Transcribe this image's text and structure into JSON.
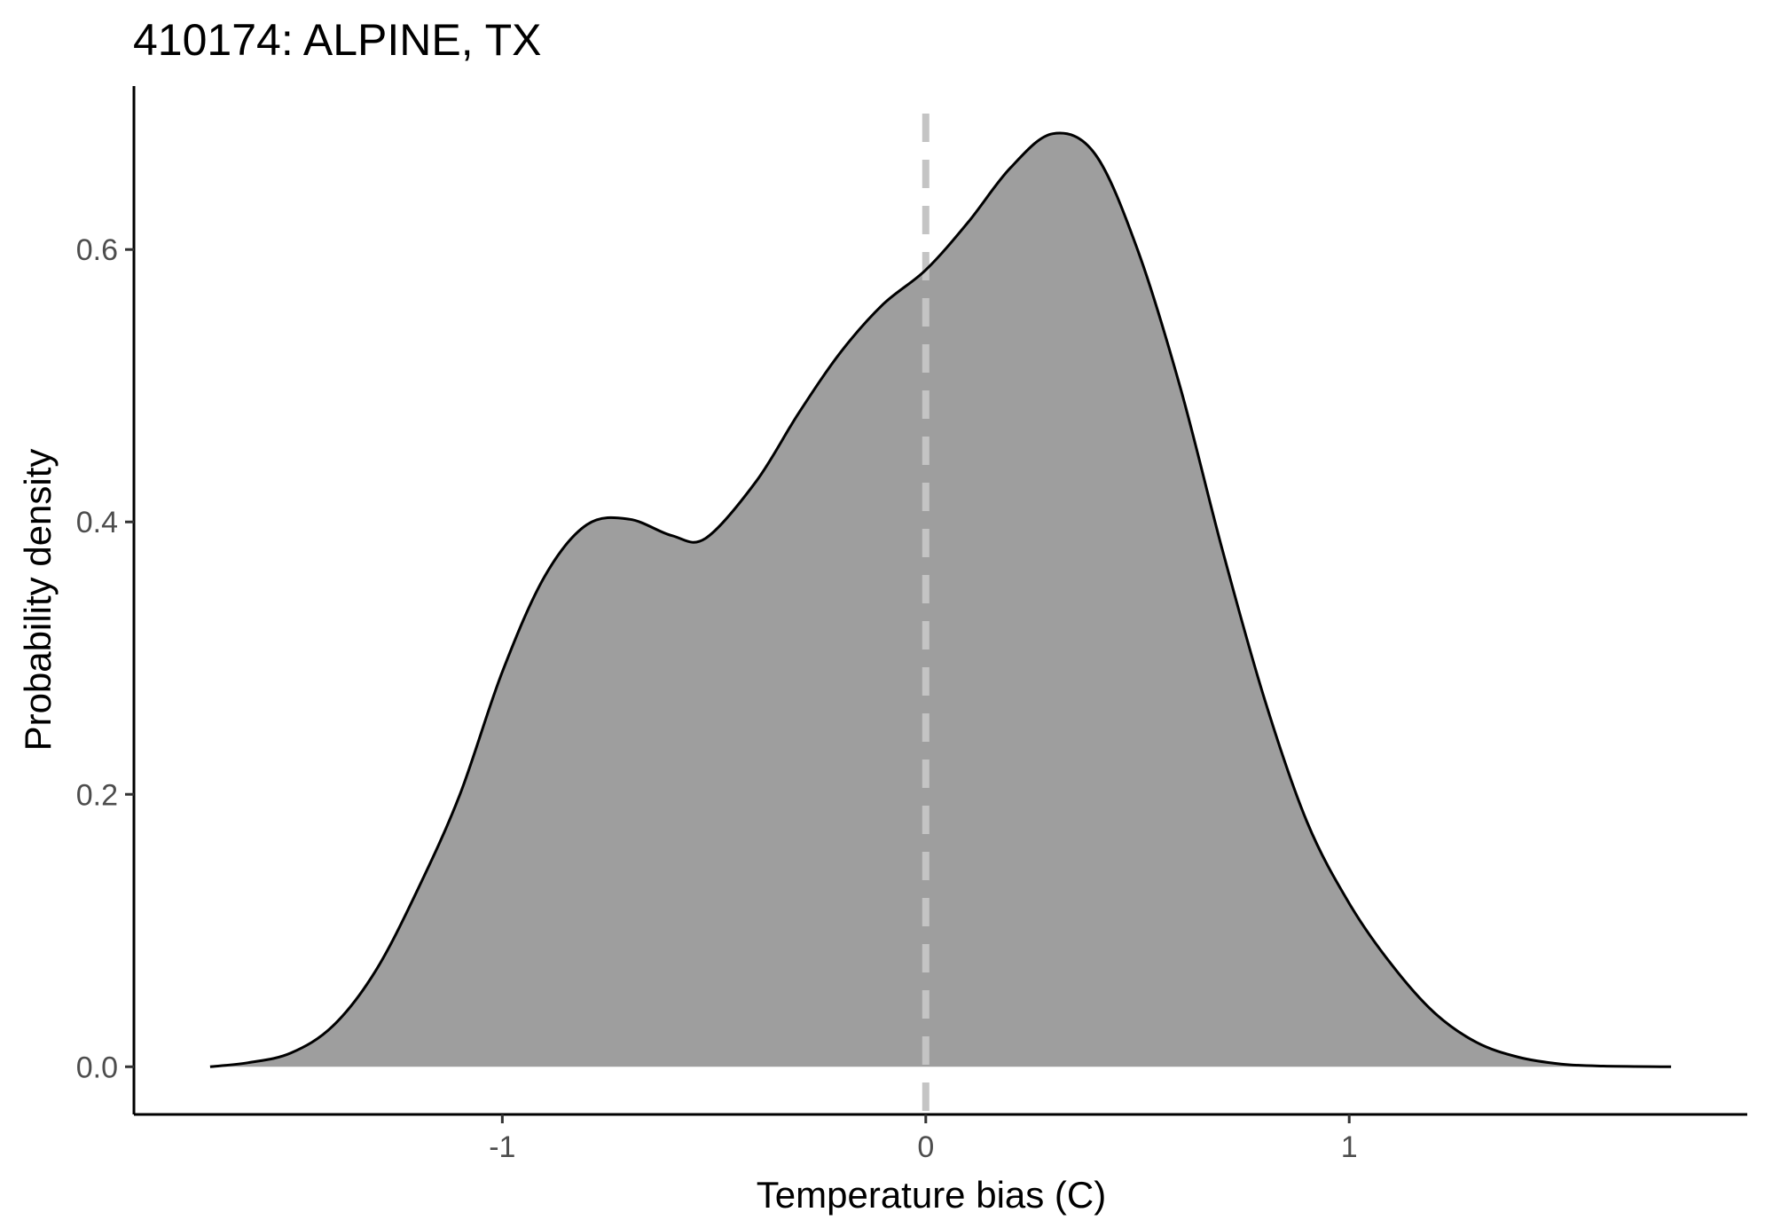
{
  "chart_data": {
    "type": "area",
    "title": "410174: ALPINE, TX",
    "xlabel": "Temperature bias (C)",
    "ylabel": "Probability density",
    "xlim": [
      -1.87,
      1.94
    ],
    "ylim": [
      -0.035,
      0.72
    ],
    "x_ticks": [
      -1,
      0,
      1
    ],
    "x_tick_labels": [
      "-1",
      "0",
      "1"
    ],
    "y_ticks": [
      0.0,
      0.2,
      0.4,
      0.6
    ],
    "y_tick_labels": [
      "0.0",
      "0.2",
      "0.4",
      "0.6"
    ],
    "grid": false,
    "legend": "none",
    "reference_line": {
      "x": 0,
      "style": "dashed",
      "color": "#c4c4c4"
    },
    "fill_color": "#9e9e9e",
    "line_color": "#000000",
    "x": [
      -1.69,
      -1.6,
      -1.5,
      -1.4,
      -1.3,
      -1.2,
      -1.1,
      -1.0,
      -0.9,
      -0.8,
      -0.7,
      -0.6,
      -0.52,
      -0.4,
      -0.3,
      -0.2,
      -0.1,
      0.0,
      0.1,
      0.2,
      0.3,
      0.4,
      0.5,
      0.6,
      0.7,
      0.8,
      0.9,
      1.0,
      1.1,
      1.2,
      1.3,
      1.4,
      1.5,
      1.6,
      1.76
    ],
    "y": [
      0.0,
      0.003,
      0.01,
      0.03,
      0.07,
      0.13,
      0.2,
      0.29,
      0.36,
      0.398,
      0.402,
      0.39,
      0.388,
      0.43,
      0.48,
      0.525,
      0.56,
      0.585,
      0.62,
      0.66,
      0.685,
      0.67,
      0.6,
      0.5,
      0.38,
      0.27,
      0.18,
      0.12,
      0.075,
      0.04,
      0.018,
      0.007,
      0.002,
      0.0005,
      0.0
    ]
  }
}
